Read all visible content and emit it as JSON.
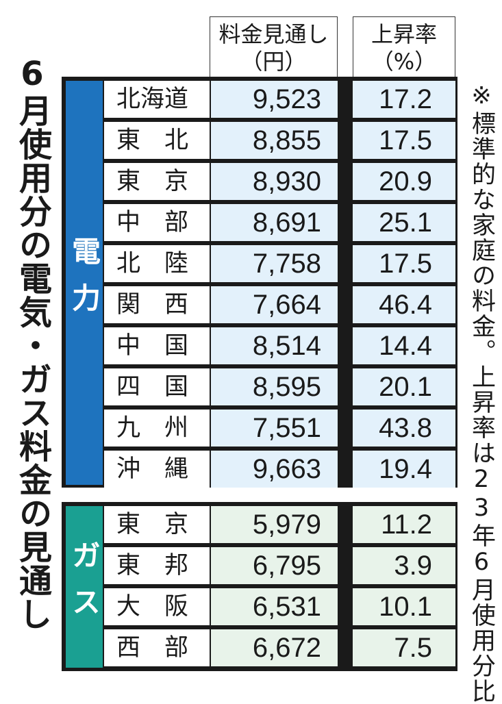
{
  "title": "6月使用分の電気・ガス料金の見通し",
  "note": "※標準的な家庭の料金。上昇率は23年6月使用分比",
  "headers": {
    "price": "料金見通し\n（円）",
    "rate": "上昇率\n（%）"
  },
  "groups": {
    "electric": "電力",
    "gas": "ガス"
  },
  "colors": {
    "electric_group": "#1e73be",
    "gas_group": "#1aa092",
    "electric_cell": "#e3f1fb",
    "gas_cell": "#e8f3ea"
  },
  "chart_data": {
    "type": "table",
    "columns": [
      "料金見通し（円）",
      "上昇率（%）"
    ],
    "rows": [
      {
        "group": "電力",
        "name": "北海道",
        "price": "9,523",
        "rate": "17.2"
      },
      {
        "group": "電力",
        "name": "東　北",
        "price": "8,855",
        "rate": "17.5"
      },
      {
        "group": "電力",
        "name": "東　京",
        "price": "8,930",
        "rate": "20.9"
      },
      {
        "group": "電力",
        "name": "中　部",
        "price": "8,691",
        "rate": "25.1"
      },
      {
        "group": "電力",
        "name": "北　陸",
        "price": "7,758",
        "rate": "17.5"
      },
      {
        "group": "電力",
        "name": "関　西",
        "price": "7,664",
        "rate": "46.4"
      },
      {
        "group": "電力",
        "name": "中　国",
        "price": "8,514",
        "rate": "14.4"
      },
      {
        "group": "電力",
        "name": "四　国",
        "price": "8,595",
        "rate": "20.1"
      },
      {
        "group": "電力",
        "name": "九　州",
        "price": "7,551",
        "rate": "43.8"
      },
      {
        "group": "電力",
        "name": "沖　縄",
        "price": "9,663",
        "rate": "19.4"
      },
      {
        "group": "ガス",
        "name": "東　京",
        "price": "5,979",
        "rate": "11.2"
      },
      {
        "group": "ガス",
        "name": "東　邦",
        "price": "6,795",
        "rate": "3.9"
      },
      {
        "group": "ガス",
        "name": "大　阪",
        "price": "6,531",
        "rate": "10.1"
      },
      {
        "group": "ガス",
        "name": "西　部",
        "price": "6,672",
        "rate": "7.5"
      }
    ]
  }
}
